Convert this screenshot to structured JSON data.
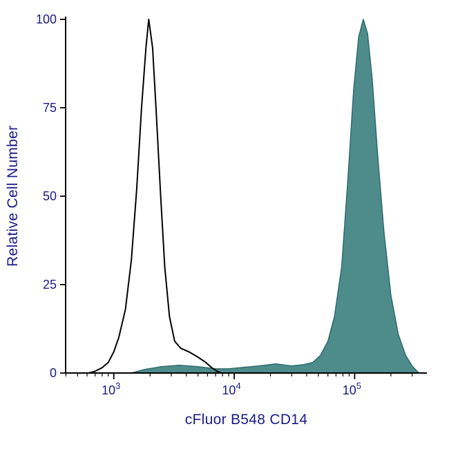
{
  "figure": {
    "background": "#ffffff"
  },
  "chart_data": {
    "type": "histogram",
    "title": "",
    "xlabel": "cFluor B548 CD14",
    "ylabel": "Relative Cell Number",
    "x_scale": "log10",
    "x_log_range": [
      2.6,
      5.6
    ],
    "ylim": [
      0,
      100
    ],
    "grid": false,
    "legend": "none",
    "y_ticks": [
      0,
      25,
      50,
      75,
      100
    ],
    "x_major_ticks": [
      {
        "base": "10",
        "exponent": "3",
        "value": 1000
      },
      {
        "base": "10",
        "exponent": "4",
        "value": 10000
      },
      {
        "base": "10",
        "exponent": "5",
        "value": 100000
      }
    ],
    "colors": {
      "axis": "#000000",
      "label_text": "#1b1b8a",
      "filled_fill": "#4e8c8c",
      "filled_stroke": "#2e6b6b",
      "outline_stroke": "#000000",
      "background": "#ffffff"
    },
    "series": [
      {
        "name": "cd14-stained-filled",
        "style": "filled",
        "points": [
          [
            1400,
            0
          ],
          [
            1800,
            1
          ],
          [
            2500,
            1.8
          ],
          [
            3500,
            2.2
          ],
          [
            5000,
            1.8
          ],
          [
            7000,
            1.2
          ],
          [
            9000,
            1.2
          ],
          [
            12000,
            1.6
          ],
          [
            16000,
            2
          ],
          [
            22000,
            2.6
          ],
          [
            30000,
            2
          ],
          [
            38000,
            2.4
          ],
          [
            45000,
            3
          ],
          [
            52000,
            5
          ],
          [
            60000,
            9
          ],
          [
            68000,
            16
          ],
          [
            78000,
            30
          ],
          [
            88000,
            55
          ],
          [
            98000,
            80
          ],
          [
            108000,
            95
          ],
          [
            118000,
            100
          ],
          [
            128000,
            96
          ],
          [
            140000,
            83
          ],
          [
            155000,
            62
          ],
          [
            175000,
            40
          ],
          [
            200000,
            22
          ],
          [
            230000,
            11
          ],
          [
            265000,
            5
          ],
          [
            300000,
            2
          ],
          [
            330000,
            0.5
          ],
          [
            345000,
            0
          ]
        ]
      },
      {
        "name": "unstained-control-outline",
        "style": "open",
        "points": [
          [
            620,
            0
          ],
          [
            700,
            0.5
          ],
          [
            800,
            1.5
          ],
          [
            900,
            3
          ],
          [
            1000,
            6
          ],
          [
            1100,
            10
          ],
          [
            1250,
            18
          ],
          [
            1400,
            32
          ],
          [
            1550,
            52
          ],
          [
            1700,
            75
          ],
          [
            1850,
            92
          ],
          [
            1950,
            100
          ],
          [
            2100,
            92
          ],
          [
            2250,
            74
          ],
          [
            2450,
            50
          ],
          [
            2650,
            30
          ],
          [
            2900,
            16
          ],
          [
            3200,
            9
          ],
          [
            3600,
            7
          ],
          [
            4200,
            6
          ],
          [
            5000,
            4.5
          ],
          [
            5800,
            3
          ],
          [
            6500,
            1.5
          ],
          [
            7200,
            0.5
          ],
          [
            7800,
            0
          ]
        ]
      }
    ]
  }
}
